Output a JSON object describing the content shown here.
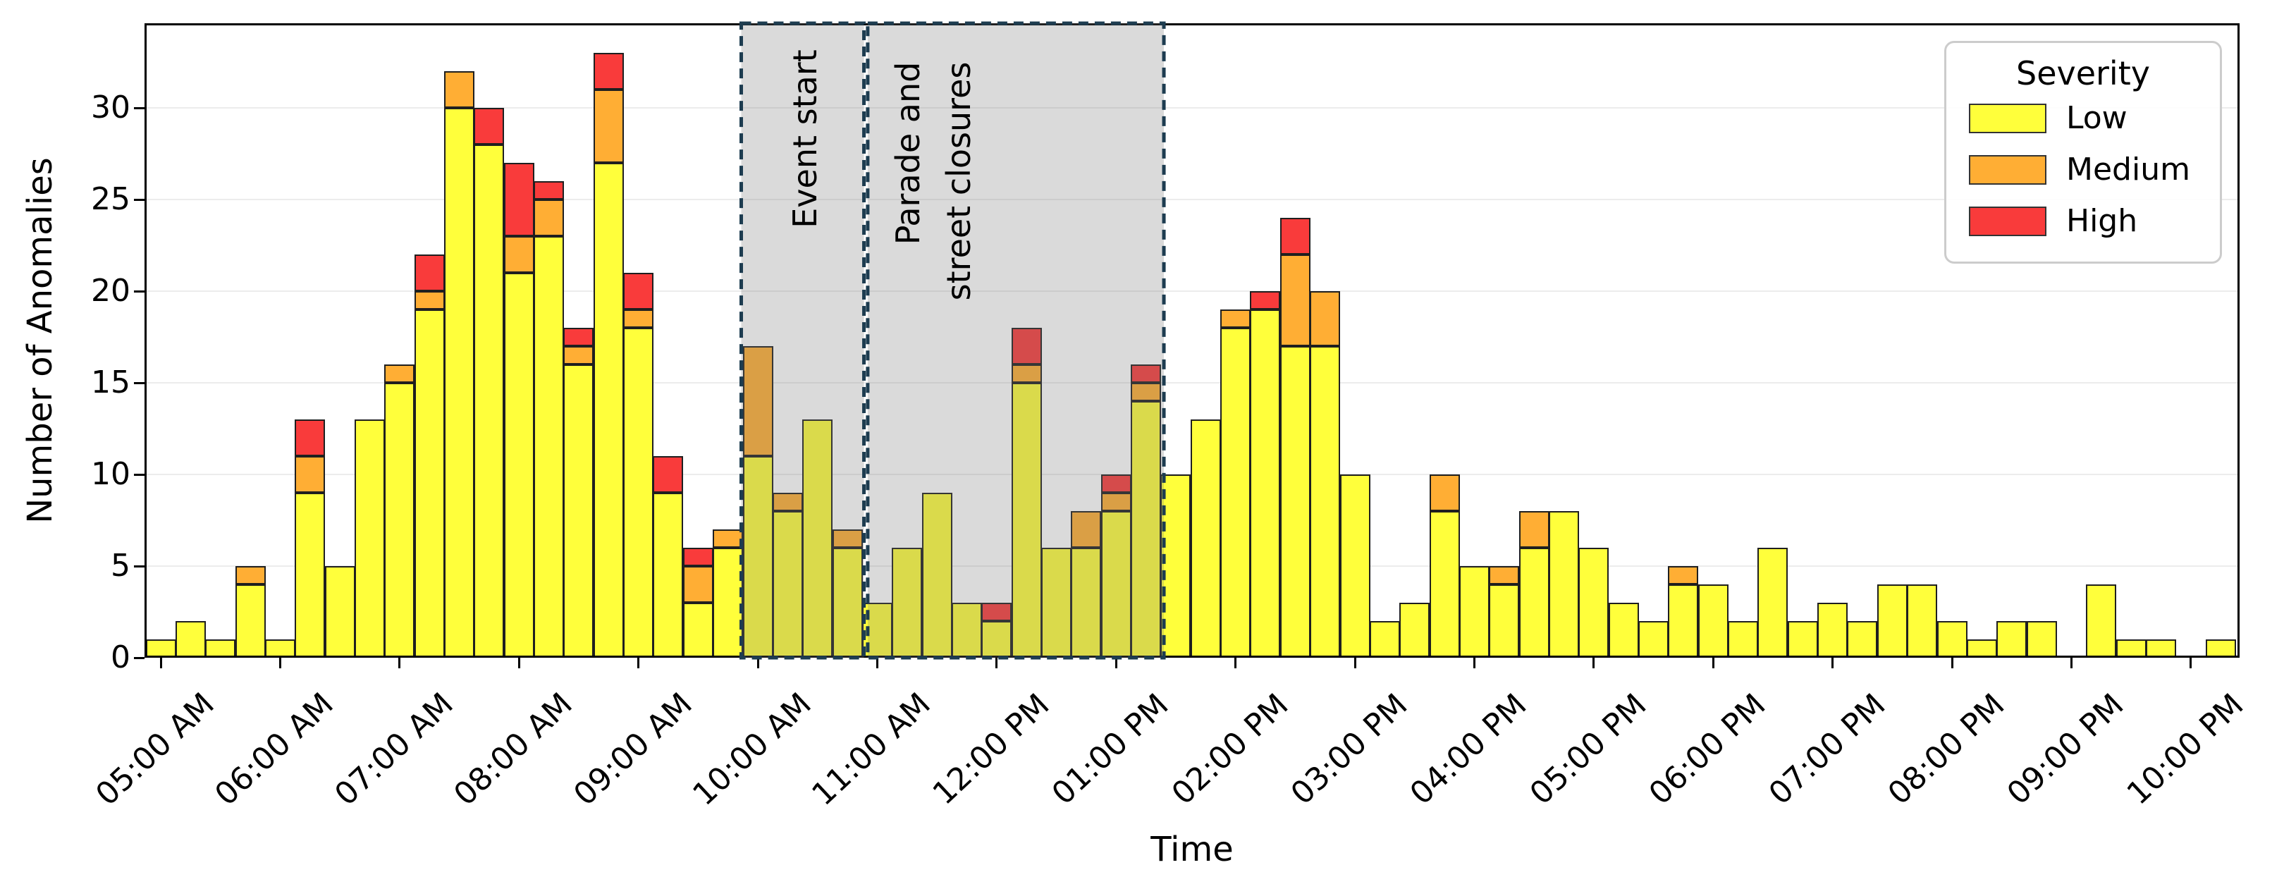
{
  "chart_data": {
    "type": "bar",
    "stacked": true,
    "title": "",
    "xlabel": "Time",
    "ylabel": "Number of Anomalies",
    "ylim": [
      0,
      34.6
    ],
    "yticks": [
      0,
      5,
      10,
      15,
      20,
      25,
      30
    ],
    "grid": "horizontal",
    "legend_title": "Severity",
    "legend_position": "top-right",
    "x": [
      "05:00",
      "05:15",
      "05:30",
      "05:45",
      "06:00",
      "06:15",
      "06:30",
      "06:45",
      "07:00",
      "07:15",
      "07:30",
      "07:45",
      "08:00",
      "08:15",
      "08:30",
      "08:45",
      "09:00",
      "09:15",
      "09:30",
      "09:45",
      "10:00",
      "10:15",
      "10:30",
      "10:45",
      "11:00",
      "11:15",
      "11:30",
      "11:45",
      "12:00",
      "12:15",
      "12:30",
      "12:45",
      "13:00",
      "13:15",
      "13:30",
      "13:45",
      "14:00",
      "14:15",
      "14:30",
      "14:45",
      "15:00",
      "15:15",
      "15:30",
      "15:45",
      "16:00",
      "16:15",
      "16:30",
      "16:45",
      "17:00",
      "17:15",
      "17:30",
      "17:45",
      "18:00",
      "18:15",
      "18:30",
      "18:45",
      "19:00",
      "19:15",
      "19:30",
      "19:45",
      "20:00",
      "20:15",
      "20:30",
      "20:45",
      "21:00",
      "21:15",
      "21:30",
      "21:45",
      "22:00",
      "22:15"
    ],
    "xtick_labels": [
      "05:00 AM",
      "06:00 AM",
      "07:00 AM",
      "08:00 AM",
      "09:00 AM",
      "10:00 AM",
      "11:00 AM",
      "12:00 PM",
      "01:00 PM",
      "02:00 PM",
      "03:00 PM",
      "04:00 PM",
      "05:00 PM",
      "06:00 PM",
      "07:00 PM",
      "08:00 PM",
      "09:00 PM",
      "10:00 PM"
    ],
    "series": [
      {
        "name": "Low",
        "color": "#FFFF3B",
        "values": [
          1,
          2,
          1,
          4,
          1,
          9,
          5,
          13,
          15,
          19,
          30,
          28,
          21,
          23,
          16,
          27,
          18,
          9,
          3,
          6,
          11,
          8,
          13,
          6,
          3,
          6,
          9,
          3,
          2,
          15,
          6,
          6,
          8,
          14,
          10,
          13,
          18,
          19,
          17,
          17,
          10,
          2,
          3,
          8,
          5,
          4,
          6,
          8,
          6,
          3,
          2,
          4,
          4,
          2,
          6,
          2,
          3,
          2,
          4,
          4,
          2,
          1,
          2,
          2,
          0,
          4,
          1,
          1,
          0,
          1
        ]
      },
      {
        "name": "Medium",
        "color": "#FFAE34",
        "values": [
          0,
          0,
          0,
          1,
          0,
          2,
          0,
          0,
          1,
          1,
          2,
          0,
          2,
          2,
          1,
          4,
          1,
          0,
          2,
          1,
          6,
          1,
          0,
          1,
          0,
          0,
          0,
          0,
          0,
          1,
          0,
          2,
          1,
          1,
          0,
          0,
          1,
          0,
          5,
          3,
          0,
          0,
          0,
          2,
          0,
          1,
          2,
          0,
          0,
          0,
          0,
          1,
          0,
          0,
          0,
          0,
          0,
          0,
          0,
          0,
          0,
          0,
          0,
          0,
          0,
          0,
          0,
          0,
          0,
          0
        ]
      },
      {
        "name": "High",
        "color": "#F93B3B",
        "values": [
          0,
          0,
          0,
          0,
          0,
          2,
          0,
          0,
          0,
          2,
          0,
          2,
          4,
          1,
          1,
          2,
          2,
          2,
          1,
          0,
          0,
          0,
          0,
          0,
          0,
          0,
          0,
          0,
          1,
          2,
          0,
          0,
          1,
          1,
          0,
          0,
          0,
          1,
          2,
          0,
          0,
          0,
          0,
          0,
          0,
          0,
          0,
          0,
          0,
          0,
          0,
          0,
          0,
          0,
          0,
          0,
          0,
          0,
          0,
          0,
          0,
          0,
          0,
          0,
          0,
          0,
          0,
          0,
          0,
          0
        ]
      }
    ],
    "annotations": [
      {
        "label": "Event start",
        "span_bars": [
          20,
          23
        ]
      },
      {
        "label": "Parade and\nstreet closures",
        "span_bars": [
          24,
          33
        ]
      }
    ],
    "annotation_style": {
      "fill": "rgba(120,120,120,0.27)",
      "stroke": "#1d3c50"
    }
  }
}
